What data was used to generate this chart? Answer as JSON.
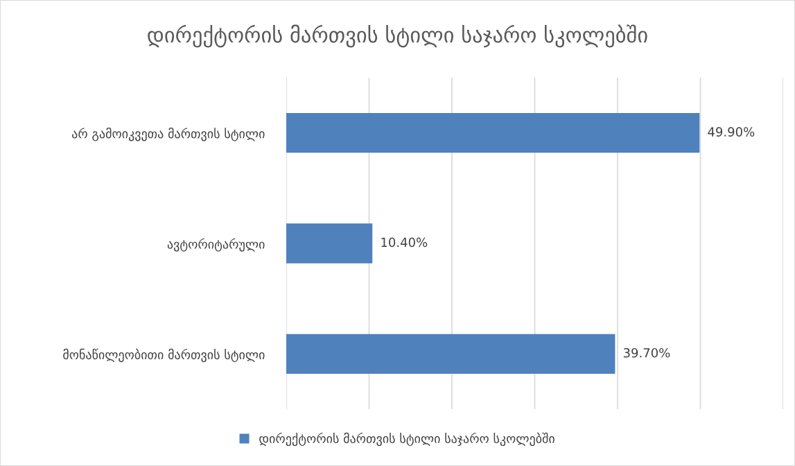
{
  "chart_data": {
    "type": "bar",
    "orientation": "horizontal",
    "title": "დირექტორის მართვის სტილი საჯარო სკოლებში",
    "categories": [
      "არ გამოიკვეთა მართვის სტილი",
      "ავტორიტარული",
      "მონაწილეობითი მართვის სტილი"
    ],
    "series": [
      {
        "name": "დირექტორის მართვის სტილი საჯარო სკოლებში",
        "color": "#4f81bd",
        "values": [
          49.9,
          10.4,
          39.7
        ],
        "value_labels": [
          "49.90%",
          "10.40%",
          "39.70%"
        ]
      }
    ],
    "xlim": [
      0,
      60
    ],
    "xticks": [
      {
        "value": 0,
        "label": null
      },
      {
        "value": 10,
        "label": null
      },
      {
        "value": 20,
        "label": null
      },
      {
        "value": 30,
        "label": null
      },
      {
        "value": 40,
        "label": null
      },
      {
        "value": 50,
        "label": null
      },
      {
        "value": 60,
        "label": null
      }
    ],
    "grid": "x",
    "legend": "bottom",
    "tick_labels": "y"
  }
}
